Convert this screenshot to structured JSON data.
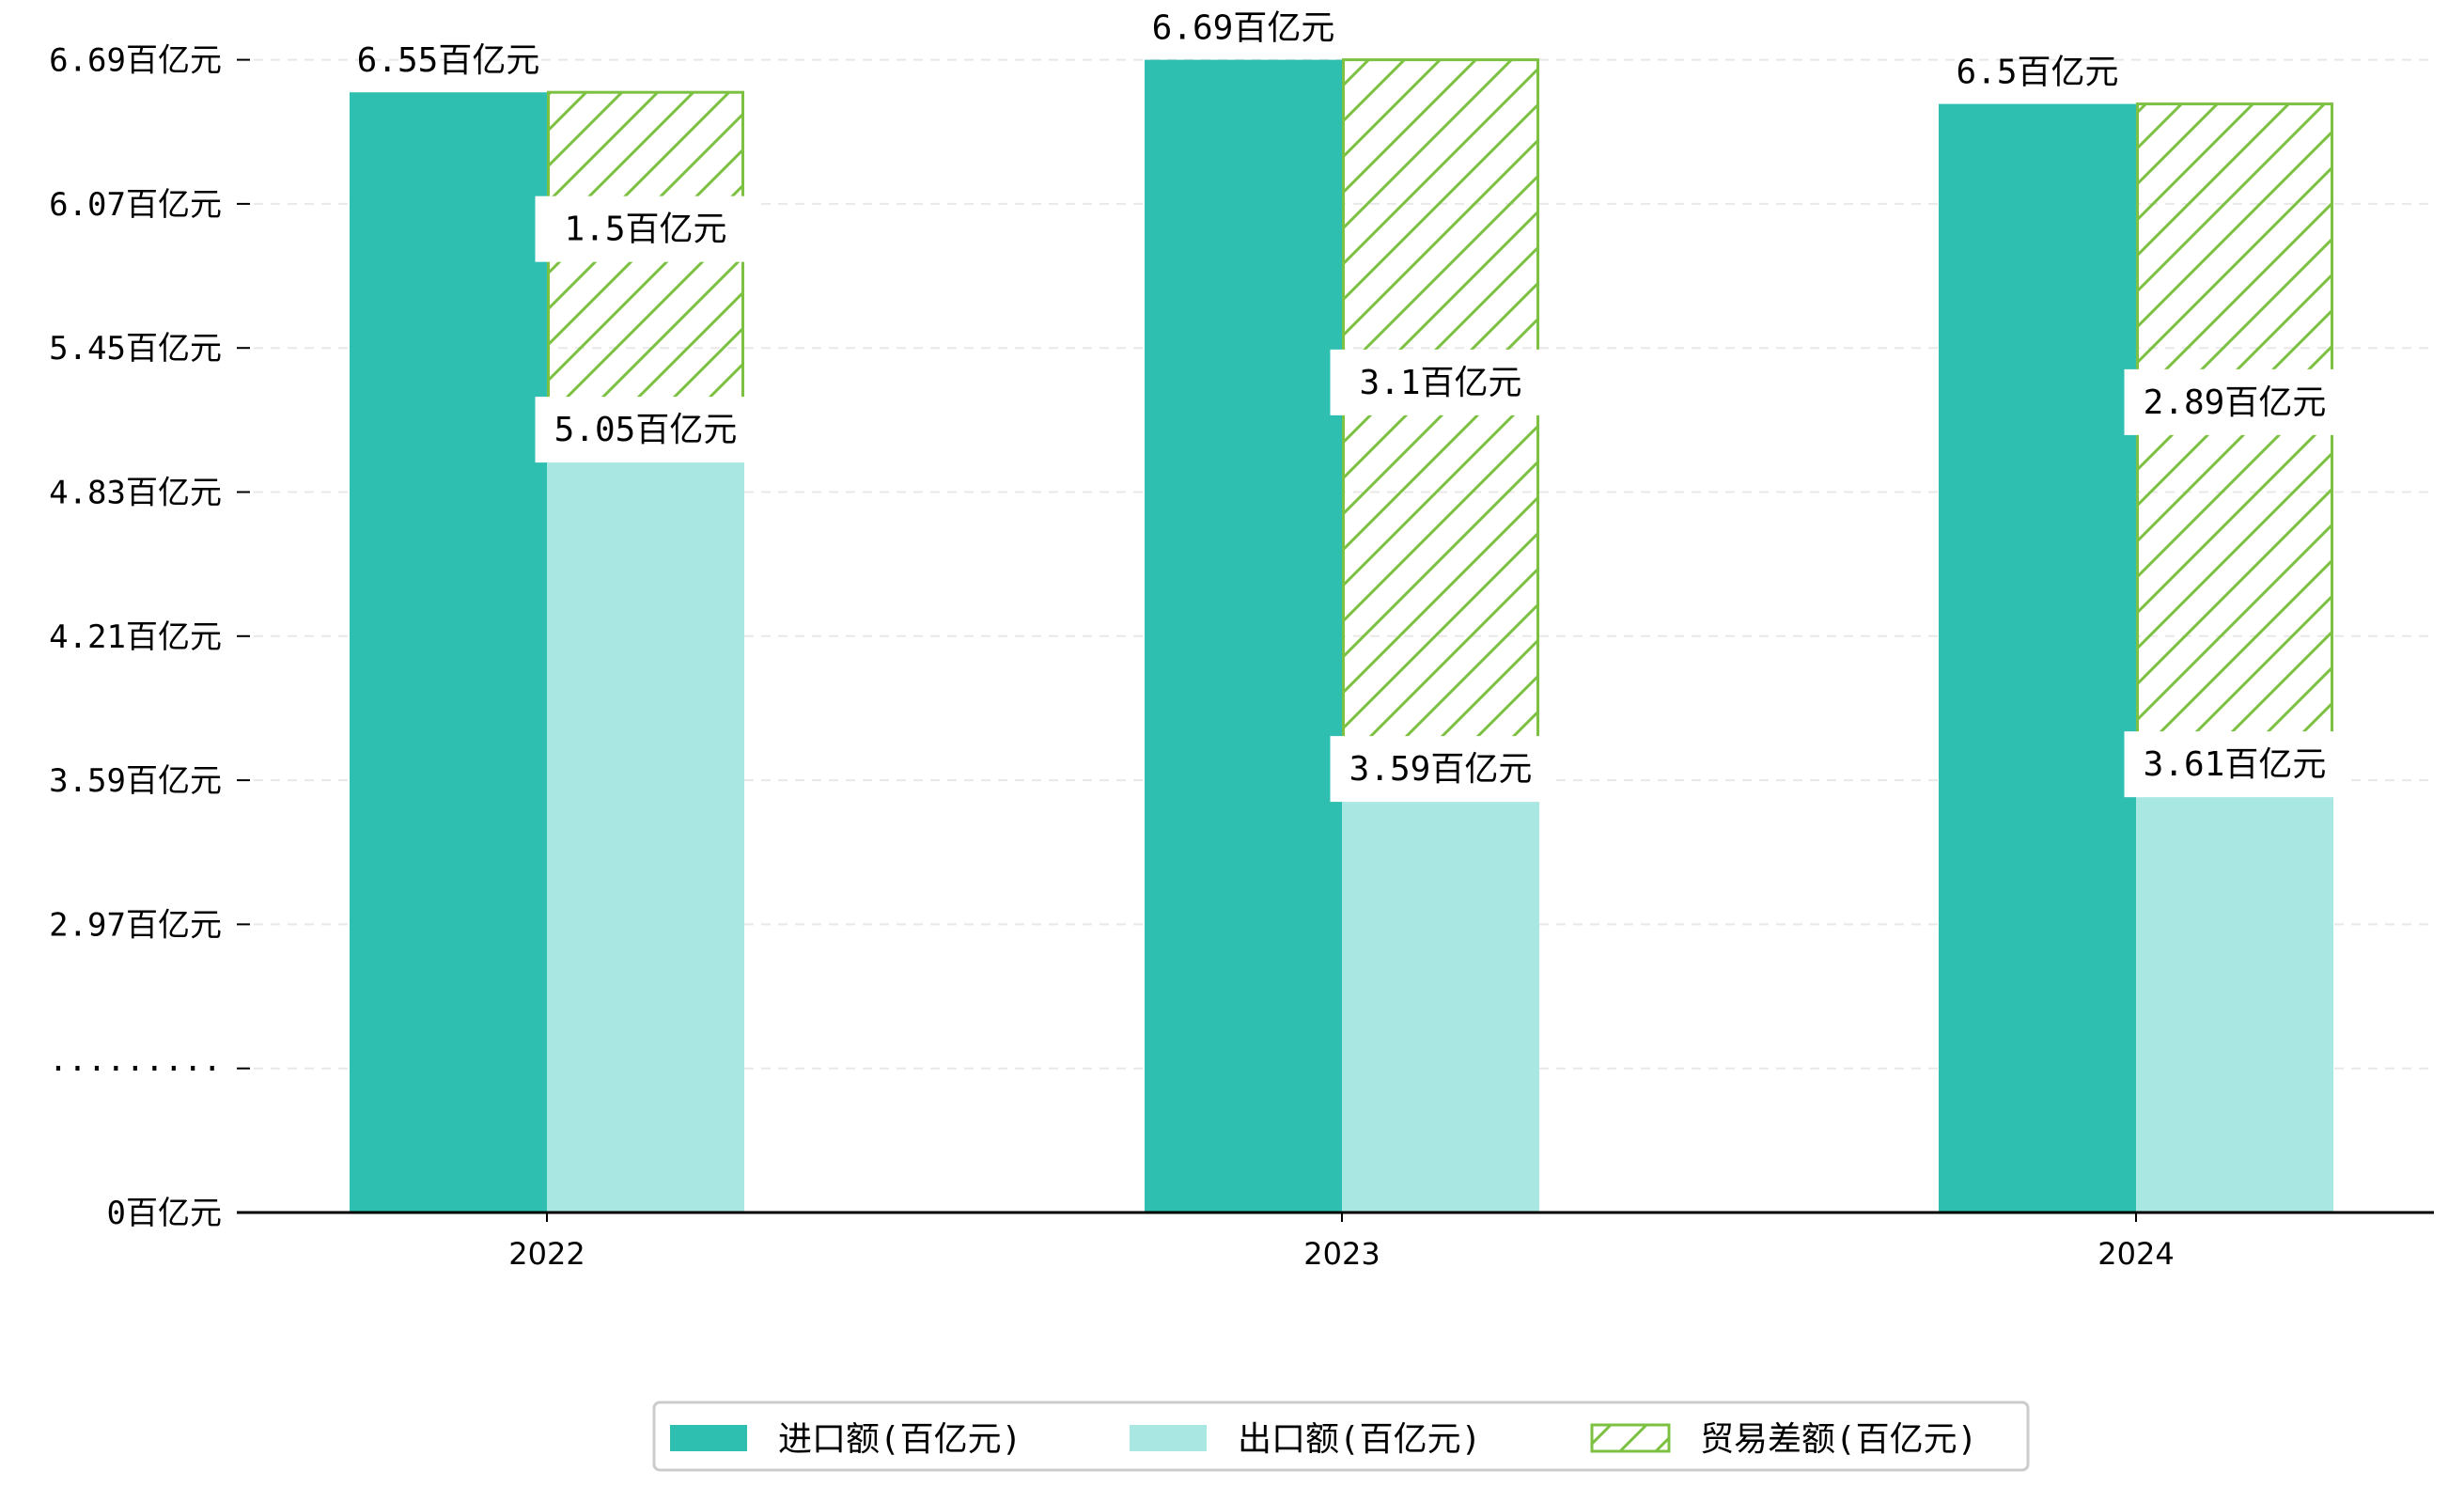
{
  "chart_data": {
    "type": "bar",
    "categories": [
      "2022",
      "2023",
      "2024"
    ],
    "series": [
      {
        "name": "进口额(百亿元)",
        "values": [
          6.55,
          6.69,
          6.5
        ],
        "labels": [
          "6.55百亿元",
          "6.69百亿元",
          "6.5百亿元"
        ],
        "color": "#2ebfb0",
        "style": "solid"
      },
      {
        "name": "出口额(百亿元)",
        "values": [
          5.05,
          3.59,
          3.61
        ],
        "labels": [
          "5.05百亿元",
          "3.59百亿元",
          "3.61百亿元"
        ],
        "color": "#a9e8e2",
        "style": "solid"
      },
      {
        "name": "贸易差额(百亿元)",
        "values": [
          1.5,
          3.1,
          2.89
        ],
        "labels": [
          "1.5百亿元",
          "3.1百亿元",
          "2.89百亿元"
        ],
        "color": "#7cc142",
        "style": "hatched",
        "stacked_on": "出口额(百亿元)"
      }
    ],
    "yaxis": {
      "broken": true,
      "ticks": [
        {
          "label": "0百亿元",
          "value": 0
        },
        {
          "label": "·········",
          "value": null
        },
        {
          "label": "2.97百亿元",
          "value": 2.97
        },
        {
          "label": "3.59百亿元",
          "value": 3.59
        },
        {
          "label": "4.21百亿元",
          "value": 4.21
        },
        {
          "label": "4.83百亿元",
          "value": 4.83
        },
        {
          "label": "5.45百亿元",
          "value": 5.45
        },
        {
          "label": "6.07百亿元",
          "value": 6.07
        },
        {
          "label": "6.69百亿元",
          "value": 6.69
        }
      ]
    },
    "title": "",
    "xlabel": "",
    "ylabel": "",
    "grid": "horizontal dashed",
    "legend": "bottom-center"
  }
}
